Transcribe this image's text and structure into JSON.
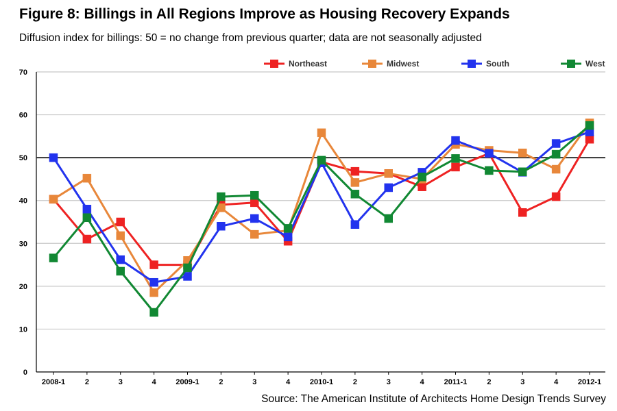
{
  "title": "Figure 8: Billings in All Regions Improve as Housing Recovery Expands",
  "subtitle": "Diffusion index for billings: 50 = no change from previous quarter; data are not seasonally adjusted",
  "source": "Source: The American Institute of Architects Home Design Trends Survey",
  "chart_data": {
    "type": "line",
    "categories": [
      "2008-1",
      "2",
      "3",
      "4",
      "2009-1",
      "2",
      "3",
      "4",
      "2010-1",
      "2",
      "3",
      "4",
      "2011-1",
      "2",
      "3",
      "4",
      "2012-1"
    ],
    "ylim": [
      0,
      70
    ],
    "yticks": [
      0,
      10,
      20,
      30,
      40,
      50,
      60,
      70
    ],
    "reference_line": 50,
    "grid": true,
    "legend_position": "top",
    "series": [
      {
        "name": "Northeast",
        "color": "#ee2222",
        "values": [
          40.3,
          31.0,
          35.0,
          25.0,
          25.0,
          39.0,
          39.5,
          30.5,
          49.0,
          46.8,
          46.3,
          43.2,
          47.8,
          51.0,
          37.2,
          40.9,
          54.3
        ]
      },
      {
        "name": "Midwest",
        "color": "#e8873a",
        "values": [
          40.3,
          45.2,
          31.8,
          18.5,
          26.0,
          38.3,
          32.1,
          33.0,
          55.8,
          44.2,
          46.3,
          45.0,
          53.1,
          51.7,
          51.1,
          47.3,
          58.1
        ]
      },
      {
        "name": "South",
        "color": "#2233ee",
        "values": [
          50.0,
          38.0,
          26.2,
          20.9,
          22.3,
          34.0,
          35.8,
          31.5,
          48.8,
          34.4,
          43.0,
          46.6,
          54.0,
          51.0,
          46.6,
          53.3,
          56.0
        ]
      },
      {
        "name": "West",
        "color": "#118833",
        "values": [
          26.6,
          36.0,
          23.5,
          13.9,
          24.3,
          40.9,
          41.2,
          33.5,
          49.4,
          41.5,
          35.8,
          45.5,
          49.8,
          47.0,
          46.7,
          50.8,
          57.5
        ]
      }
    ]
  }
}
